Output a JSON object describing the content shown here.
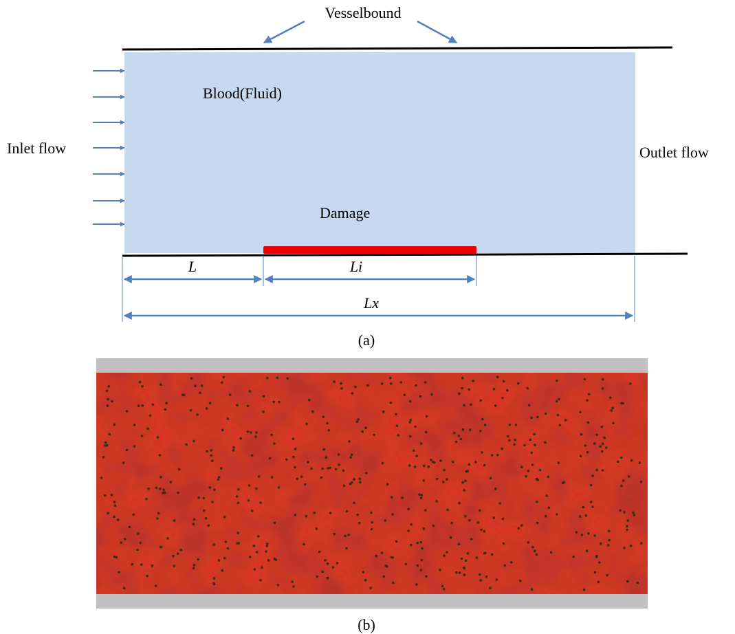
{
  "panel_a": {
    "top_label": "Vesselbound",
    "fluid_label": "Blood(Fluid)",
    "inlet_label": "Inlet flow",
    "outlet_label": "Outlet flow",
    "damage_label": "Damage",
    "dim_L": "L",
    "dim_Li": "Li",
    "dim_Lx": "Lx",
    "caption": "(a)",
    "colors": {
      "fluid": "#c6d9f0",
      "damage": "#ee0000",
      "arrow": "#4f81bd",
      "wall": "#000000"
    }
  },
  "panel_b": {
    "caption": "(b)",
    "colors": {
      "blood": "#e23a2a",
      "wall": "#c0c0c0",
      "particle": "#3a2a10"
    }
  }
}
